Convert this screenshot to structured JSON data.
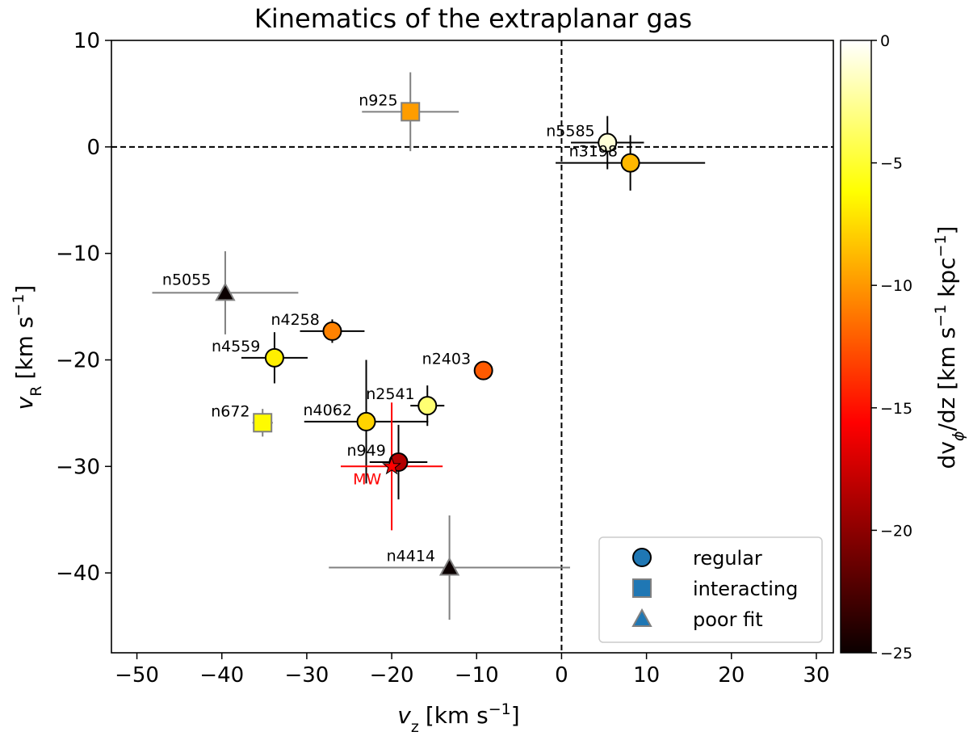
{
  "chart_data": {
    "type": "scatter",
    "title": "Kinematics of the extraplanar gas",
    "xlabel": {
      "var": "v",
      "sub": "z",
      "unit": "[km s",
      "exp": "−1",
      "close": "]"
    },
    "ylabel": {
      "var": "v",
      "sub": "R",
      "unit": "[km s",
      "exp": "−1",
      "close": "]"
    },
    "xlim": [
      -53,
      32
    ],
    "ylim": [
      -47.5,
      10
    ],
    "xticks": [
      -50,
      -40,
      -30,
      -20,
      -10,
      0,
      10,
      20,
      30
    ],
    "xtick_labels": [
      "−50",
      "−40",
      "−30",
      "−20",
      "−10",
      "0",
      "10",
      "20",
      "30"
    ],
    "yticks": [
      -40,
      -30,
      -20,
      -10,
      0,
      10
    ],
    "ytick_labels": [
      "−40",
      "−30",
      "−20",
      "−10",
      "0",
      "10"
    ],
    "reference_lines": {
      "x": 0,
      "y": 0,
      "style": "dashed"
    },
    "colorbar": {
      "label": "dv_φ/dz [km s⁻¹ kpc⁻¹]",
      "label_parts": {
        "a": "dv",
        "sub": "ϕ",
        "b": "/dz [km s",
        "exp1": "−1",
        "c": " kpc",
        "exp2": "−1",
        "d": "]"
      },
      "range": [
        -25,
        0
      ],
      "ticks": [
        0,
        -5,
        -10,
        -15,
        -20,
        -25
      ],
      "tick_labels": [
        "0",
        "−5",
        "−10",
        "−15",
        "−20",
        "−25"
      ],
      "colormap": "hot"
    },
    "legend": {
      "position": "lower-right",
      "entries": [
        {
          "label": "regular",
          "marker": "circle"
        },
        {
          "label": "interacting",
          "marker": "square"
        },
        {
          "label": "poor fit",
          "marker": "triangle"
        }
      ],
      "marker_color": "#1f77b4"
    },
    "points": [
      {
        "name": "n925",
        "vz": -17.8,
        "vR": 3.3,
        "xerr": 5.7,
        "yerr": 3.7,
        "dvdz": -10,
        "category": "interacting"
      },
      {
        "name": "n5585",
        "vz": 5.4,
        "vR": 0.4,
        "xerr": 4.3,
        "yerr": 2.5,
        "dvdz": -1,
        "category": "regular"
      },
      {
        "name": "n3198",
        "vz": 8.1,
        "vR": -1.5,
        "xerr": 8.8,
        "yerr": 2.6,
        "dvdz": -9,
        "category": "regular"
      },
      {
        "name": "n5055",
        "vz": -39.6,
        "vR": -13.7,
        "xerr": 8.6,
        "yerr": 3.9,
        "dvdz": -25,
        "category": "poor fit"
      },
      {
        "name": "n4258",
        "vz": -27.0,
        "vR": -17.3,
        "xerr": 3.8,
        "yerr": 1.1,
        "dvdz": -11,
        "category": "regular"
      },
      {
        "name": "n4559",
        "vz": -33.8,
        "vR": -19.8,
        "xerr": 3.9,
        "yerr": 2.4,
        "dvdz": -7,
        "category": "regular"
      },
      {
        "name": "n2403",
        "vz": -9.2,
        "vR": -21.0,
        "xerr": 0,
        "yerr": 0,
        "dvdz": -12.5,
        "category": "regular"
      },
      {
        "name": "n2541",
        "vz": -15.8,
        "vR": -24.3,
        "xerr": 2.0,
        "yerr": 1.9,
        "dvdz": -3.5,
        "category": "regular"
      },
      {
        "name": "n672",
        "vz": -35.2,
        "vR": -25.9,
        "xerr": 1.2,
        "yerr": 1.3,
        "dvdz": -6.5,
        "category": "interacting"
      },
      {
        "name": "n4062",
        "vz": -23.0,
        "vR": -25.8,
        "xerr": 7.3,
        "yerr": 5.8,
        "dvdz": -8,
        "category": "regular"
      },
      {
        "name": "n949",
        "vz": -19.2,
        "vR": -29.6,
        "xerr": 3.4,
        "yerr": 3.5,
        "dvdz": -19,
        "category": "regular"
      },
      {
        "name": "n4414",
        "vz": -13.2,
        "vR": -39.5,
        "xerr": 14.2,
        "yerr": 4.9,
        "dvdz": -25,
        "category": "poor fit"
      }
    ],
    "milky_way": {
      "name": "MW",
      "vz": -20,
      "vR": -30,
      "xerr": 6,
      "yerr": 6,
      "color": "#ff0000"
    }
  }
}
